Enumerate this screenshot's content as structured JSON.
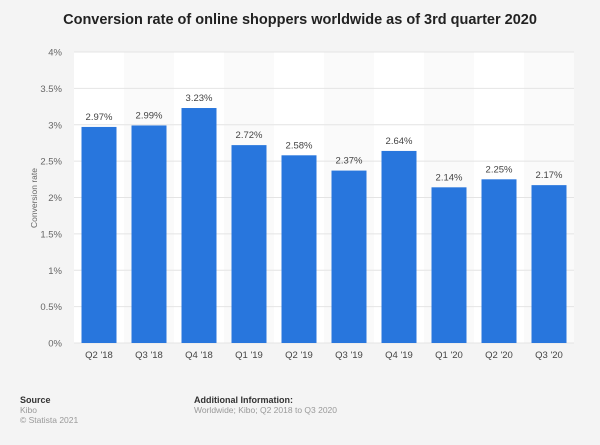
{
  "chart_data": {
    "type": "bar",
    "title": "Conversion rate of online shoppers worldwide as of 3rd quarter 2020",
    "ylabel": "Conversion rate",
    "xlabel": "",
    "categories": [
      "Q2 '18",
      "Q3 '18",
      "Q4 '18",
      "Q1 '19",
      "Q2 '19",
      "Q3 '19",
      "Q4 '19",
      "Q1 '20",
      "Q2 '20",
      "Q3 '20"
    ],
    "values": [
      2.97,
      2.99,
      3.23,
      2.72,
      2.58,
      2.37,
      2.64,
      2.14,
      2.25,
      2.17
    ],
    "data_labels": [
      "2.97%",
      "2.99%",
      "3.23%",
      "2.72%",
      "2.58%",
      "2.37%",
      "2.64%",
      "2.14%",
      "2.25%",
      "2.17%"
    ],
    "ylim": [
      0,
      4
    ],
    "yticks": [
      "0%",
      "0.5%",
      "1%",
      "1.5%",
      "2%",
      "2.5%",
      "3%",
      "3.5%",
      "4%"
    ],
    "grid": true,
    "bar_color": "#2876dd"
  },
  "footer": {
    "source_heading": "Source",
    "source": "Kibo",
    "copyright": "© Statista 2021",
    "info_heading": "Additional Information:",
    "info": "Worldwide; Kibo; Q2 2018 to Q3 2020"
  }
}
